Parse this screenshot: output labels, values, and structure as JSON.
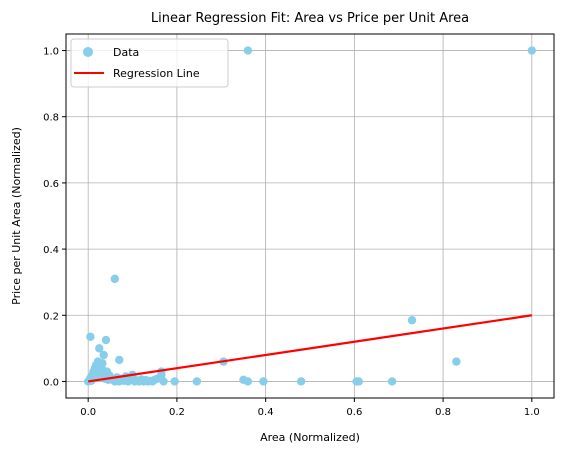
{
  "chart_data": {
    "type": "scatter",
    "title": "Linear Regression Fit: Area vs Price per Unit Area",
    "xlabel": "Area (Normalized)",
    "ylabel": "Price per Unit Area (Normalized)",
    "xlim": [
      -0.05,
      1.05
    ],
    "ylim": [
      -0.05,
      1.05
    ],
    "xticks": [
      0.0,
      0.2,
      0.4,
      0.6,
      0.8,
      1.0
    ],
    "yticks": [
      0.0,
      0.2,
      0.4,
      0.6,
      0.8,
      1.0
    ],
    "xtick_labels": [
      "0.0",
      "0.2",
      "0.4",
      "0.6",
      "0.8",
      "1.0"
    ],
    "ytick_labels": [
      "0.0",
      "0.2",
      "0.4",
      "0.6",
      "0.8",
      "1.0"
    ],
    "grid": true,
    "legend_position": "top-left",
    "series": [
      {
        "name": "Data",
        "kind": "scatter",
        "color": "#87ceeb",
        "points": [
          [
            0.0,
            0.0
          ],
          [
            0.003,
            0.005
          ],
          [
            0.005,
            0.01
          ],
          [
            0.007,
            0.002
          ],
          [
            0.01,
            0.02
          ],
          [
            0.012,
            0.03
          ],
          [
            0.015,
            0.04
          ],
          [
            0.018,
            0.05
          ],
          [
            0.02,
            0.012
          ],
          [
            0.022,
            0.06
          ],
          [
            0.025,
            0.025
          ],
          [
            0.028,
            0.035
          ],
          [
            0.03,
            0.045
          ],
          [
            0.032,
            0.055
          ],
          [
            0.035,
            0.02
          ],
          [
            0.038,
            0.008
          ],
          [
            0.04,
            0.015
          ],
          [
            0.042,
            0.03
          ],
          [
            0.045,
            0.005
          ],
          [
            0.048,
            0.018
          ],
          [
            0.005,
            0.135
          ],
          [
            0.025,
            0.1
          ],
          [
            0.035,
            0.08
          ],
          [
            0.04,
            0.125
          ],
          [
            0.06,
            0.31
          ],
          [
            0.07,
            0.065
          ],
          [
            0.05,
            0.01
          ],
          [
            0.055,
            0.005
          ],
          [
            0.06,
            0.0
          ],
          [
            0.065,
            0.012
          ],
          [
            0.07,
            0.0
          ],
          [
            0.075,
            0.008
          ],
          [
            0.08,
            0.002
          ],
          [
            0.085,
            0.015
          ],
          [
            0.09,
            0.0
          ],
          [
            0.095,
            0.005
          ],
          [
            0.1,
            0.02
          ],
          [
            0.105,
            0.0
          ],
          [
            0.11,
            0.003
          ],
          [
            0.115,
            0.0
          ],
          [
            0.12,
            0.006
          ],
          [
            0.125,
            0.0
          ],
          [
            0.13,
            0.004
          ],
          [
            0.135,
            0.0
          ],
          [
            0.14,
            0.002
          ],
          [
            0.145,
            0.0
          ],
          [
            0.15,
            0.005
          ],
          [
            0.155,
            0.008
          ],
          [
            0.16,
            0.01
          ],
          [
            0.165,
            0.02
          ],
          [
            0.165,
            0.03
          ],
          [
            0.17,
            0.0
          ],
          [
            0.195,
            0.0
          ],
          [
            0.245,
            0.0
          ],
          [
            0.305,
            0.06
          ],
          [
            0.35,
            0.005
          ],
          [
            0.36,
            0.0
          ],
          [
            0.395,
            0.0
          ],
          [
            0.48,
            0.0
          ],
          [
            0.605,
            0.0
          ],
          [
            0.61,
            0.0
          ],
          [
            0.685,
            0.0
          ],
          [
            0.73,
            0.185
          ],
          [
            0.83,
            0.06
          ],
          [
            0.36,
            1.0
          ],
          [
            1.0,
            1.0
          ]
        ]
      },
      {
        "name": "Regression Line",
        "kind": "line",
        "color": "#ff0000",
        "points": [
          [
            0.0,
            0.0
          ],
          [
            1.0,
            0.2
          ]
        ]
      }
    ]
  }
}
